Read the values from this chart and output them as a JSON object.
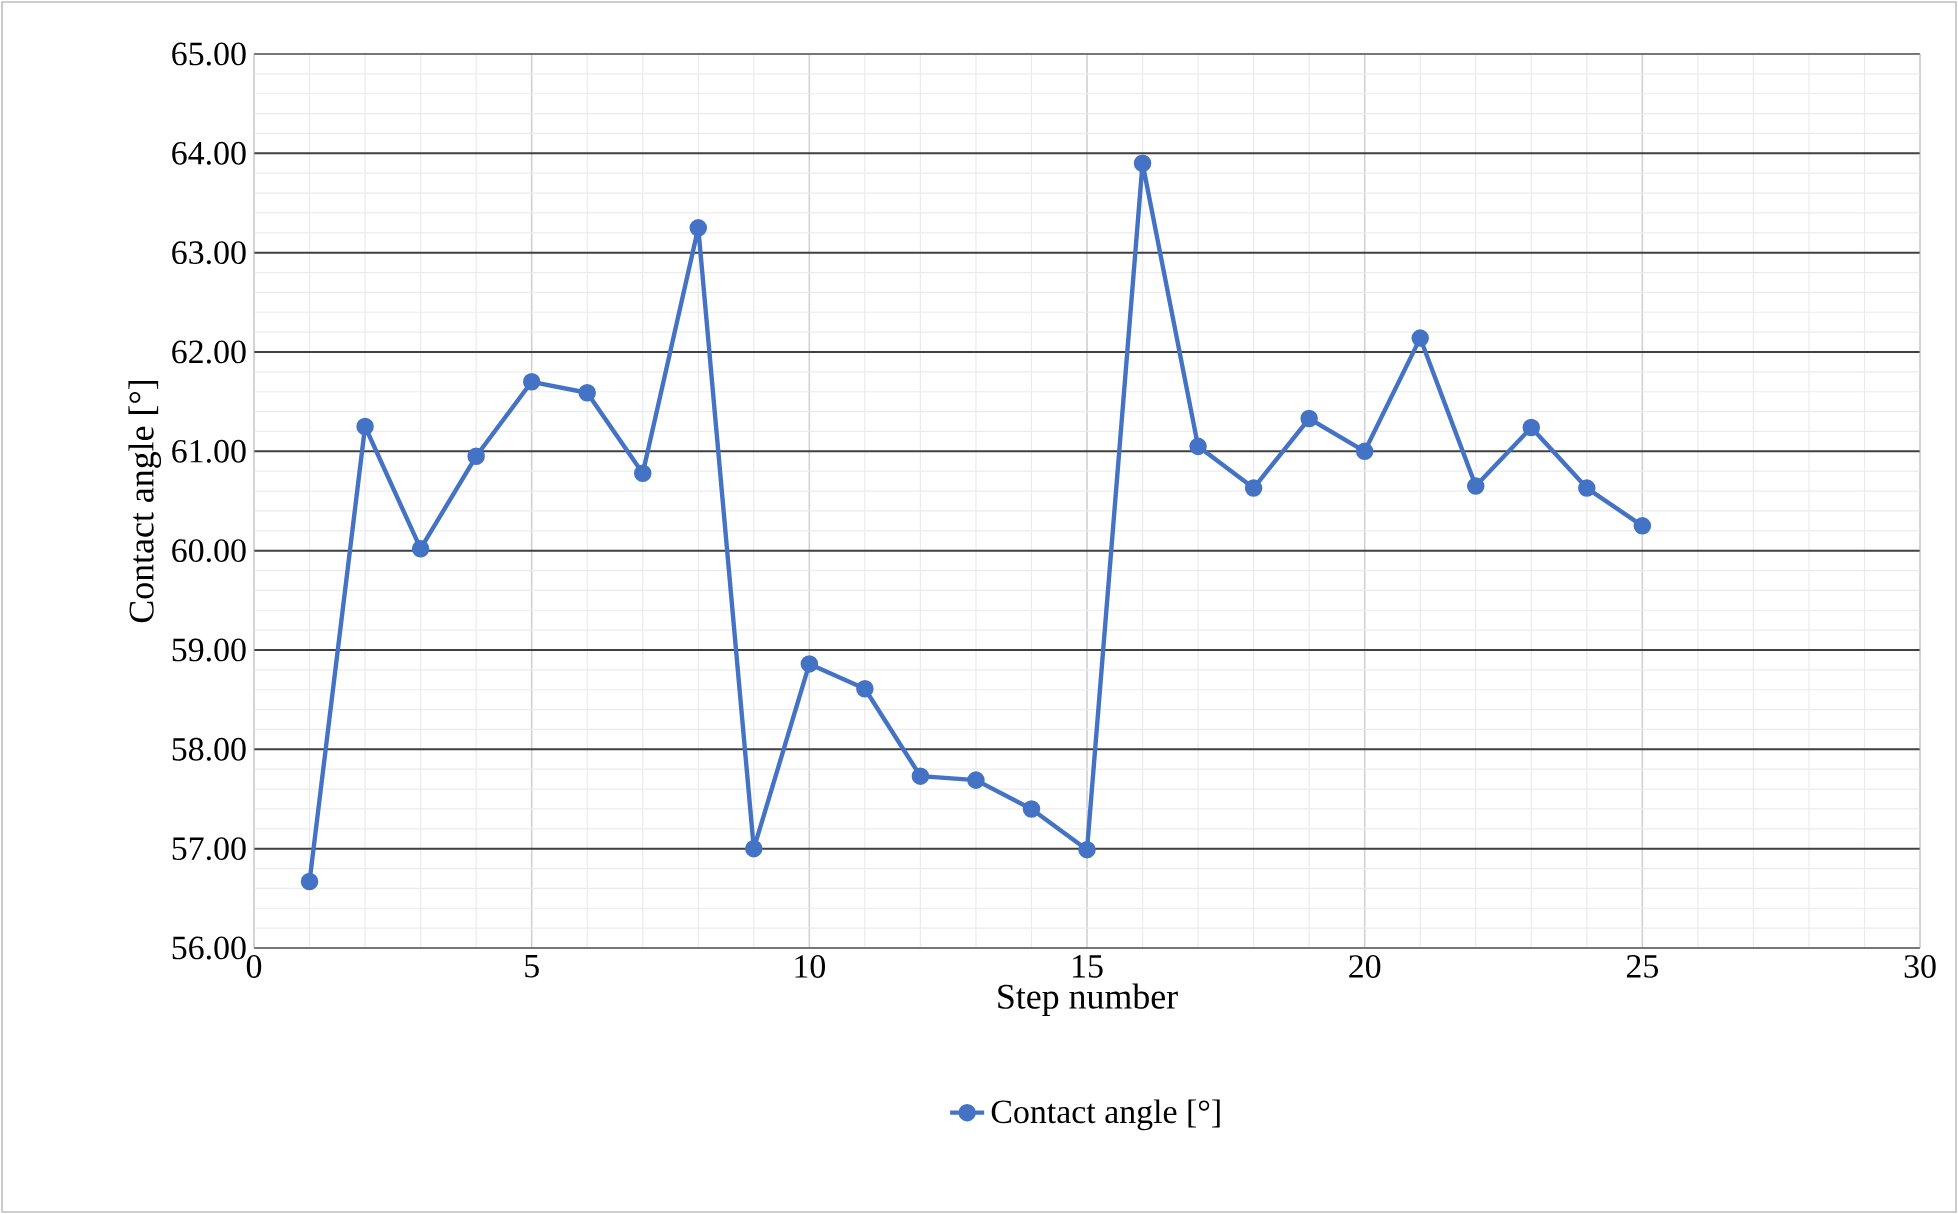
{
  "chart_data": {
    "type": "line",
    "xlabel": "Step number",
    "ylabel": "Contact angle [°]",
    "x": [
      1,
      2,
      3,
      4,
      5,
      6,
      7,
      8,
      9,
      10,
      11,
      12,
      13,
      14,
      15,
      16,
      17,
      18,
      19,
      20,
      21,
      22,
      23,
      24,
      25
    ],
    "series": [
      {
        "name": "Contact angle [°]",
        "color": "#4472c4",
        "values": [
          56.67,
          61.25,
          60.02,
          60.95,
          61.7,
          61.59,
          60.78,
          63.25,
          57.0,
          58.86,
          58.61,
          57.73,
          57.69,
          57.4,
          56.99,
          63.9,
          61.05,
          60.63,
          61.33,
          61.0,
          62.14,
          60.65,
          61.24,
          60.63,
          60.25
        ]
      }
    ],
    "xlim": [
      0,
      30
    ],
    "xticks": [
      0,
      5,
      10,
      15,
      20,
      25,
      30
    ],
    "ylim": [
      56,
      65
    ],
    "yticks": [
      {
        "value": 56,
        "label": "56.00"
      },
      {
        "value": 57,
        "label": "57.00"
      },
      {
        "value": 58,
        "label": "58.00"
      },
      {
        "value": 59,
        "label": "59.00"
      },
      {
        "value": 60,
        "label": "60.00"
      },
      {
        "value": 61,
        "label": "61.00"
      },
      {
        "value": 62,
        "label": "62.00"
      },
      {
        "value": 63,
        "label": "63.00"
      },
      {
        "value": 64,
        "label": "64.00"
      },
      {
        "value": 65,
        "label": "65.00"
      }
    ],
    "grid": true,
    "legend": "bottom",
    "marker": "circle"
  }
}
